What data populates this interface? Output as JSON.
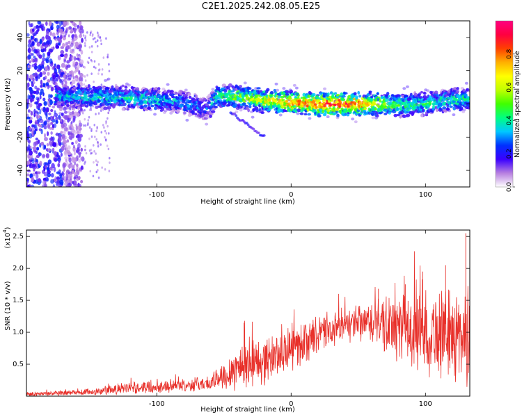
{
  "figure": {
    "title": "C2E1.2025.242.08.05.E25"
  },
  "colors": {
    "snr_line": "#e8302a",
    "axis": "#000000"
  },
  "chart_data": [
    {
      "type": "heatmap",
      "title": "",
      "xlabel": "Height of straight line (km)",
      "ylabel": "Frequency (Hz)",
      "xlim": [
        -197,
        133
      ],
      "ylim": [
        -50,
        50
      ],
      "x_ticks": [
        -100,
        0,
        100
      ],
      "y_ticks": [
        -40,
        -20,
        0,
        20,
        40
      ],
      "colorbar": {
        "label": "Normalized spectral amplitude",
        "range": [
          0,
          1
        ],
        "ticks": [
          0.0,
          0.2,
          0.4,
          0.6,
          0.8
        ],
        "tick_labels": [
          "0.0",
          "0.2",
          "0.4",
          "0.6",
          "0.8"
        ],
        "colormap": [
          "#ffffff",
          "#b77fe0",
          "#3a00ff",
          "#0030ff",
          "#00c8ff",
          "#00ff80",
          "#40ff00",
          "#c0ff00",
          "#ffff00",
          "#ffb000",
          "#ff4000",
          "#ff0040",
          "#ff0080"
        ]
      },
      "ridge": {
        "x": [
          -170,
          -150,
          -130,
          -110,
          -90,
          -75,
          -62,
          -55,
          -40,
          -20,
          0,
          20,
          40,
          60,
          80,
          100,
          115,
          133
        ],
        "freq": [
          5,
          4,
          4,
          3,
          2,
          0,
          -3,
          5,
          4,
          2,
          1,
          0,
          0,
          0,
          -1,
          0,
          2,
          3
        ],
        "amplitude": [
          0.35,
          0.4,
          0.4,
          0.4,
          0.35,
          0.3,
          0.25,
          0.45,
          0.55,
          0.7,
          0.8,
          0.85,
          0.95,
          0.7,
          0.5,
          0.45,
          0.4,
          0.45
        ]
      },
      "noise_region": {
        "x_range": [
          -197,
          -155
        ],
        "freq_range": [
          -50,
          50
        ],
        "amplitude": 0.15
      }
    },
    {
      "type": "line",
      "title": "",
      "xlabel": "Height of straight line (km)",
      "ylabel": "SNR (10 * v/v)",
      "scale_label": "(x10",
      "scale_exponent": "4",
      "xlim": [
        -197,
        133
      ],
      "ylim": [
        0,
        2.6
      ],
      "x_ticks": [
        -100,
        0,
        100
      ],
      "y_ticks": [
        0.5,
        1.0,
        1.5,
        2.0,
        2.5
      ],
      "y_tick_labels": [
        "0.5",
        "1.0",
        "1.5",
        "2.0",
        "2.5"
      ],
      "envelope": {
        "x": [
          -197,
          -160,
          -140,
          -120,
          -100,
          -80,
          -60,
          -45,
          -35,
          -20,
          -10,
          0,
          20,
          40,
          60,
          80,
          100,
          120,
          133
        ],
        "mean": [
          0.03,
          0.05,
          0.08,
          0.13,
          0.15,
          0.17,
          0.2,
          0.4,
          0.5,
          0.55,
          0.65,
          0.75,
          0.95,
          1.1,
          1.15,
          1.05,
          1.0,
          0.95,
          0.95
        ],
        "spread": [
          0.03,
          0.04,
          0.06,
          0.08,
          0.08,
          0.08,
          0.1,
          0.25,
          0.35,
          0.3,
          0.3,
          0.3,
          0.25,
          0.2,
          0.3,
          0.45,
          0.55,
          0.6,
          0.7
        ]
      },
      "peaks": [
        {
          "x": 130,
          "y": 2.55
        },
        {
          "x": 115,
          "y": 2.05
        },
        {
          "x": 98,
          "y": 1.95
        },
        {
          "x": 85,
          "y": 1.75
        },
        {
          "x": 65,
          "y": 1.68
        },
        {
          "x": -35,
          "y": 1.15
        }
      ]
    }
  ]
}
